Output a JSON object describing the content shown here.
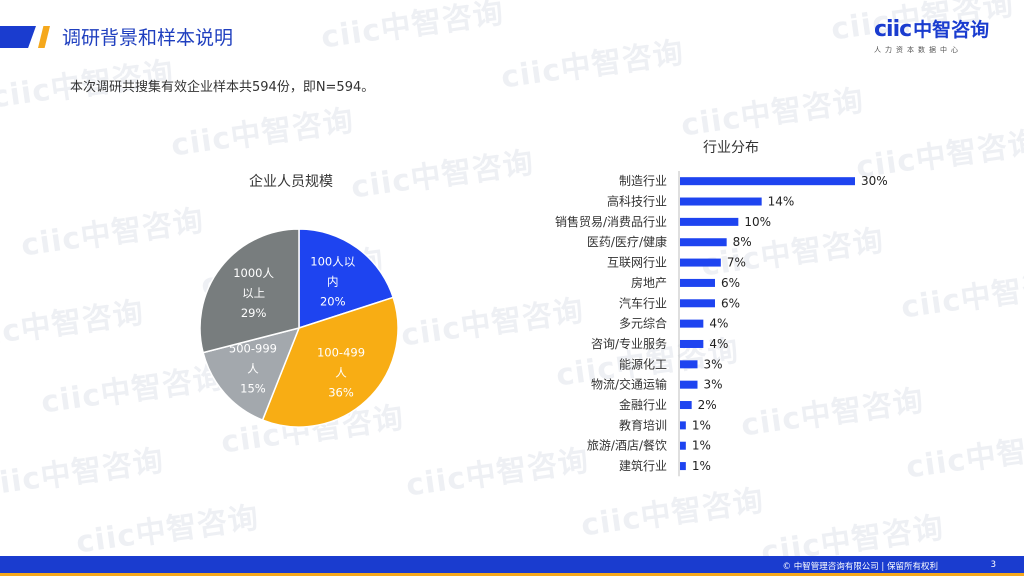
{
  "header": {
    "title": "调研背景和样本说明",
    "subtitle": "本次调研共搜集有效企业样本共594份，即N=594。"
  },
  "logo": {
    "mark": "ciic",
    "name_cn": "中智咨询",
    "tagline": "人力资本数据中心"
  },
  "watermark_text": "ciic中智咨询",
  "colors": {
    "brand_blue": "#1a3ccf",
    "accent_gold": "#f5a81c",
    "pie_blue": "#1e44f0",
    "pie_orange": "#f8ad14",
    "pie_lightgray": "#a3a8ad",
    "pie_darkgray": "#787d7e",
    "bar_blue": "#1e44f0"
  },
  "chart_data": [
    {
      "type": "pie",
      "title": "企业人员规模",
      "slices": [
        {
          "label_lines": [
            "100人以",
            "内"
          ],
          "value_label": "20%",
          "value": 20
        },
        {
          "label_lines": [
            "100-499",
            "人"
          ],
          "value_label": "36%",
          "value": 36
        },
        {
          "label_lines": [
            "500-999",
            "人"
          ],
          "value_label": "15%",
          "value": 15
        },
        {
          "label_lines": [
            "1000人",
            "以上"
          ],
          "value_label": "29%",
          "value": 29
        }
      ]
    },
    {
      "type": "bar",
      "orientation": "horizontal",
      "title": "行业分布",
      "categories": [
        "制造行业",
        "高科技行业",
        "销售贸易/消费品行业",
        "医药/医疗/健康",
        "互联网行业",
        "房地产",
        "汽车行业",
        "多元综合",
        "咨询/专业服务",
        "能源化工",
        "物流/交通运输",
        "金融行业",
        "教育培训",
        "旅游/酒店/餐饮",
        "建筑行业"
      ],
      "values": [
        30,
        14,
        10,
        8,
        7,
        6,
        6,
        4,
        4,
        3,
        3,
        2,
        1,
        1,
        1
      ],
      "value_labels": [
        "30%",
        "14%",
        "10%",
        "8%",
        "7%",
        "6%",
        "6%",
        "4%",
        "4%",
        "3%",
        "3%",
        "2%",
        "1%",
        "1%",
        "1%"
      ]
    }
  ],
  "footer": {
    "copyright": "© 中智管理咨询有限公司 | 保留所有权利",
    "page_number": "3"
  }
}
